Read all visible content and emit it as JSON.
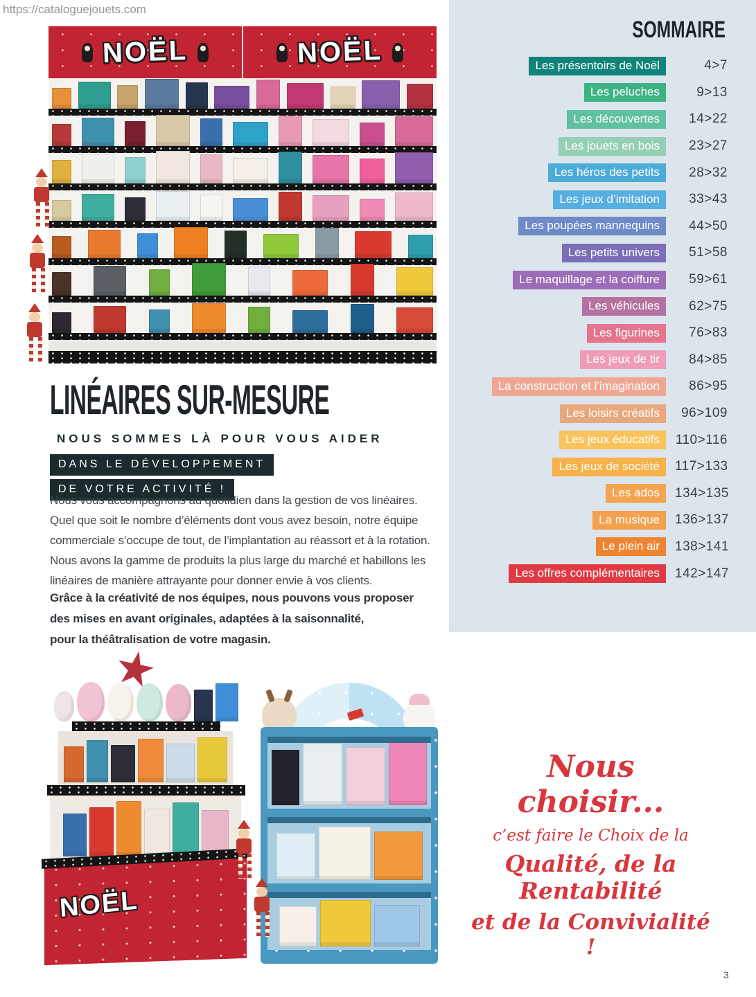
{
  "page": {
    "url": "https://cataloguejouets.com",
    "page_number": "3"
  },
  "css_colors": {
    "banner-red": "#c22433",
    "panel-bg": "#dce4ec",
    "dark-box": "#1b2b2e",
    "script-red": "#d9363e",
    "cabinet-blue": "#4a98c0"
  },
  "top_photo": {
    "banner_text": "NOËL",
    "shelf_rows": [
      [
        "#e8903a",
        "#2f9d8f",
        "#c9a56b",
        "#5a7a9e",
        "#27364e",
        "#7a4e9e",
        "#d8699a",
        "#c13a74",
        "#e3d3b8",
        "#8a5fae",
        "#b2333f"
      ],
      [
        "#b63a3a",
        "#3f8fae",
        "#7a1f2e",
        "#d8c9a8",
        "#3a6fae",
        "#2ea3c9",
        "#e89ab5",
        "#f3d9e0",
        "#c94f8e",
        "#d86a9a"
      ],
      [
        "#e0b040",
        "#f0efec",
        "#8fd0cf",
        "#f2e6e0",
        "#e8b8c4",
        "#f5efe8",
        "#2e8f9e",
        "#e875a8",
        "#ef5f9a",
        "#8f5fae"
      ],
      [
        "#d8c9a0",
        "#3fae9e",
        "#2e2e38",
        "#e8f0f4",
        "#f5f5f2",
        "#4a90d8",
        "#c0392e",
        "#e8a0c0",
        "#ef8ab5",
        "#f0b8cc"
      ],
      [
        "#b85c20",
        "#e87a2e",
        "#3f8fd8",
        "#ef8020",
        "#223028",
        "#8fc93a",
        "#8a9aa5",
        "#d83a2e",
        "#2e9eae"
      ],
      [
        "#4a3328",
        "#5a5f66",
        "#6fae3f",
        "#3f9e3a",
        "#e8e8ee",
        "#ef6a3a",
        "#d8392e",
        "#f0c93a"
      ],
      [
        "#2e2830",
        "#c0392e",
        "#3f8fae",
        "#ef8a2e",
        "#6fae3f",
        "#2e6f9e",
        "#1f5f8a",
        "#d84a3a"
      ]
    ]
  },
  "headline": {
    "title": "LINÉAIRES SUR-MESURE",
    "subtitle": "NOUS SOMMES LÀ POUR VOUS AIDER",
    "highlight_lines": [
      "DANS LE DÉVELOPPEMENT",
      "DE VOTRE ACTIVITÉ !"
    ]
  },
  "body": {
    "paragraph1": "Nous vous accompagnons au quotidien dans la gestion de vos linéaires.\nQuel que soit le nombre d’éléments dont vous avez besoin, notre équipe\ncommerciale s’occupe de tout, de l’implantation au réassort et à la rotation.\nNous avons la gamme de produits la plus large du marché et habillons les\nlinéaires de manière attrayante pour donner envie à vos clients.",
    "paragraph2": "Grâce à la créativité de nos équipes, nous pouvons vous proposer\ndes mises en avant originales, adaptées à la saisonnalité,\npour la théâtralisation de votre magasin."
  },
  "sommaire": {
    "title": "SOMMAIRE",
    "items": [
      {
        "label": "Les présentoirs de Noël",
        "pages": "4>7",
        "color": "#10847a"
      },
      {
        "label": "Les peluches",
        "pages": "9>13",
        "color": "#3cb381"
      },
      {
        "label": "Les découvertes",
        "pages": "14>22",
        "color": "#5fc0a2"
      },
      {
        "label": "Les jouets en bois",
        "pages": "23>27",
        "color": "#95cfb4"
      },
      {
        "label": "Les héros des petits",
        "pages": "28>32",
        "color": "#4bacd8"
      },
      {
        "label": "Les jeux d’imitation",
        "pages": "33>43",
        "color": "#57aee0"
      },
      {
        "label": "Les poupées mannequins",
        "pages": "44>50",
        "color": "#6e8bc8"
      },
      {
        "label": "Les petits univers",
        "pages": "51>58",
        "color": "#7c6fb7"
      },
      {
        "label": "Le maquillage et la coiffure",
        "pages": "59>61",
        "color": "#9c6cb8"
      },
      {
        "label": "Les véhicules",
        "pages": "62>75",
        "color": "#b472a0"
      },
      {
        "label": "Les figurines",
        "pages": "76>83",
        "color": "#e4758f"
      },
      {
        "label": "Les jeux de tir",
        "pages": "84>85",
        "color": "#ee9db7"
      },
      {
        "label": "La construction et l’imagination",
        "pages": "86>95",
        "color": "#efa794"
      },
      {
        "label": "Les loisirs créatifs",
        "pages": "96>109",
        "color": "#e8a87e"
      },
      {
        "label": "Les jeux éducatifs",
        "pages": "110>116",
        "color": "#f9c45c"
      },
      {
        "label": "Les jeux de société",
        "pages": "117>133",
        "color": "#f6b149"
      },
      {
        "label": "Les ados",
        "pages": "134>135",
        "color": "#f4a351"
      },
      {
        "label": "La musique",
        "pages": "136>137",
        "color": "#f5a04d"
      },
      {
        "label": "Le plein air",
        "pages": "138>141",
        "color": "#ee8330"
      },
      {
        "label": "Les offres complémentaires",
        "pages": "142>147",
        "color": "#e23a43"
      }
    ]
  },
  "script_text": {
    "lines": [
      "Nous choisir...",
      "c’est faire le Choix de la",
      "Qualité, de la Rentabilité",
      "et de la Convivialité !"
    ]
  },
  "displays": {
    "left": {
      "base_text": "NOËL",
      "plush_colors": [
        "#efe3ea",
        "#f2c3d2",
        "#f7f2ec",
        "#cfe9e1",
        "#ecb9c9"
      ],
      "top_boxes": [
        "#27364e",
        "#3f8fd8"
      ],
      "mid_boxes": [
        "#d8692e",
        "#3f8fae",
        "#2e2e38",
        "#ef8a3a",
        "#c9dce8",
        "#e8c93a"
      ],
      "low_boxes": [
        "#3a6fae",
        "#d8392e",
        "#ef8a2e",
        "#f0e8e0",
        "#3fae9e",
        "#e8b8c8"
      ]
    },
    "right": {
      "shelf1": [
        "#23222b",
        "#e9eef2",
        "#f3cfdd",
        "#ee86b8"
      ],
      "shelf2": [
        "#dfeef5",
        "#f6f1e7",
        "#f09a3b"
      ],
      "shelf3": [
        "#f6f0e9",
        "#f0c93a",
        "#9ec7e8"
      ]
    }
  }
}
